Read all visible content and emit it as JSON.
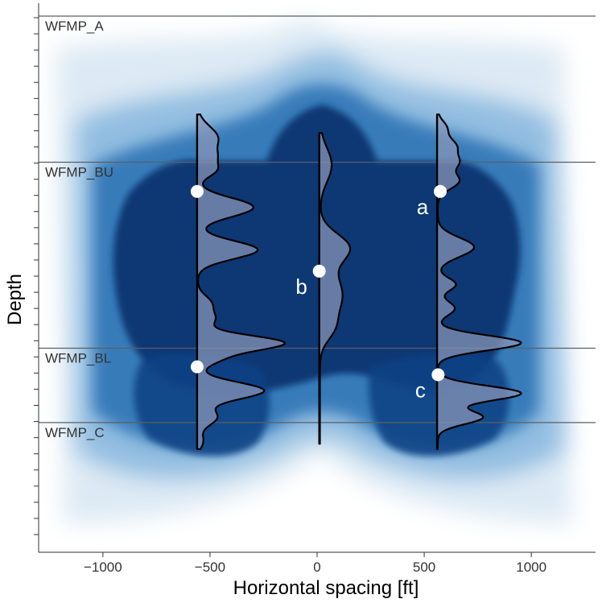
{
  "chart_data": {
    "type": "heatmap",
    "xlabel": "Horizontal spacing [ft]",
    "ylabel": "Depth",
    "xlim": [
      -1300,
      1300
    ],
    "x_ticks": [
      -1000,
      -500,
      0,
      500,
      1000
    ],
    "x_tick_labels": [
      "−1000",
      "−500",
      "0",
      "500",
      "1000"
    ],
    "ylim": [
      0,
      100
    ],
    "y_axis_inverted": true,
    "y_tick_labels_shown": false,
    "y_minor_tick_count": 33,
    "grid": false,
    "colormap": {
      "low": "#ffffff",
      "mid": "#4f8fc6",
      "high": "#0b3873"
    },
    "formations": [
      {
        "name": "WFMP_A",
        "depth": 0
      },
      {
        "name": "WFMP_BU",
        "depth": 27.5
      },
      {
        "name": "WFMP_BL",
        "depth": 62.5
      },
      {
        "name": "WFMP_C",
        "depth": 76.5
      }
    ],
    "density_profiles": [
      {
        "x": -560,
        "depth_range": [
          18.5,
          81.5
        ],
        "peaks": [
          {
            "depth": 23,
            "amplitude": 95,
            "width": 2.2
          },
          {
            "depth": 26.5,
            "amplitude": 55,
            "width": 1.3
          },
          {
            "depth": 29,
            "amplitude": 80,
            "width": 1.3
          },
          {
            "depth": 36,
            "amplitude": 260,
            "width": 1.8
          },
          {
            "depth": 44,
            "amplitude": 280,
            "width": 1.7
          },
          {
            "depth": 54,
            "amplitude": 60,
            "width": 1.4
          },
          {
            "depth": 57,
            "amplitude": 75,
            "width": 1.4
          },
          {
            "depth": 61.5,
            "amplitude": 400,
            "width": 1.4
          },
          {
            "depth": 64.5,
            "amplitude": 90,
            "width": 1.3
          },
          {
            "depth": 70.5,
            "amplitude": 310,
            "width": 1.6
          },
          {
            "depth": 75.5,
            "amplitude": 90,
            "width": 1.5
          },
          {
            "depth": 80,
            "amplitude": 25,
            "width": 1.3
          }
        ]
      },
      {
        "x": 10,
        "depth_range": [
          22,
          80.5
        ],
        "peaks": [
          {
            "depth": 28,
            "amplitude": 55,
            "width": 3.2
          },
          {
            "depth": 43.5,
            "amplitude": 130,
            "width": 2.6
          },
          {
            "depth": 52.5,
            "amplitude": 105,
            "width": 4.2
          },
          {
            "depth": 59,
            "amplitude": 40,
            "width": 2.2
          }
        ]
      },
      {
        "x": 560,
        "depth_range": [
          18.5,
          81.5
        ],
        "peaks": [
          {
            "depth": 21,
            "amplitude": 40,
            "width": 1.3
          },
          {
            "depth": 24.5,
            "amplitude": 85,
            "width": 1.5
          },
          {
            "depth": 27.5,
            "amplitude": 85,
            "width": 1.3
          },
          {
            "depth": 31,
            "amplitude": 100,
            "width": 1.5
          },
          {
            "depth": 43.5,
            "amplitude": 170,
            "width": 1.8
          },
          {
            "depth": 50.5,
            "amplitude": 85,
            "width": 1.2
          },
          {
            "depth": 55,
            "amplitude": 80,
            "width": 1.3
          },
          {
            "depth": 61.5,
            "amplitude": 390,
            "width": 1.4
          },
          {
            "depth": 71,
            "amplitude": 390,
            "width": 1.4
          },
          {
            "depth": 75.5,
            "amplitude": 210,
            "width": 1.3
          }
        ]
      }
    ],
    "well_markers": [
      {
        "label": "",
        "x": -560,
        "depth": 33
      },
      {
        "label": "",
        "x": -560,
        "depth": 66
      },
      {
        "label": "b",
        "x": 10,
        "depth": 48
      },
      {
        "label": "a",
        "x": 575,
        "depth": 33
      },
      {
        "label": "c",
        "x": 565,
        "depth": 67.5
      }
    ]
  }
}
